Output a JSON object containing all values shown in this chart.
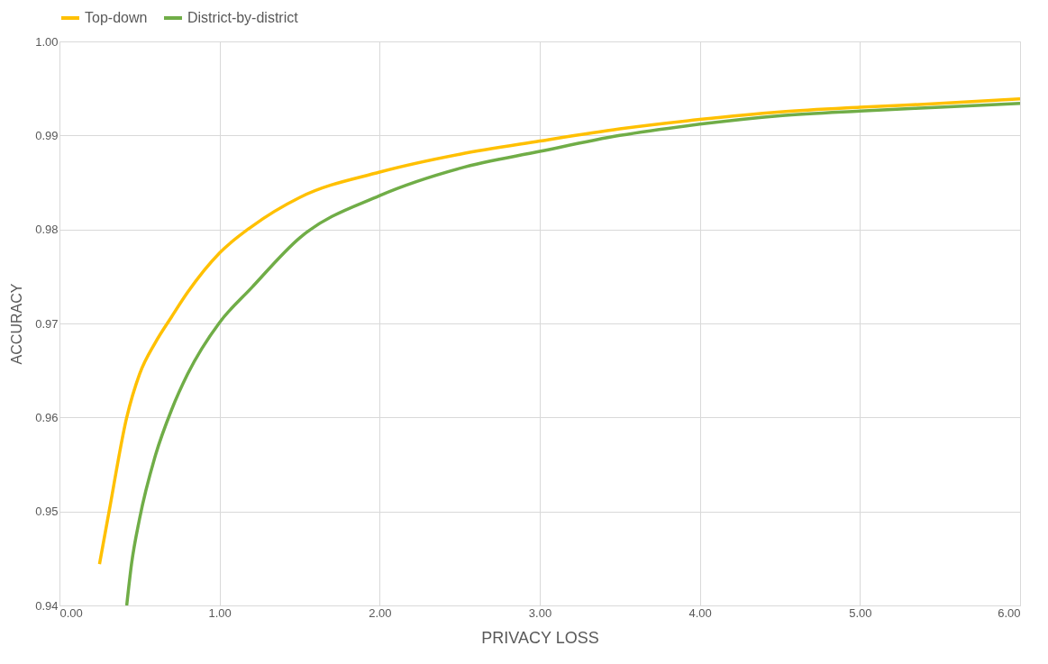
{
  "chart_data": {
    "type": "line",
    "xlabel": "PRIVACY LOSS",
    "ylabel": "ACCURACY",
    "xlim": [
      0,
      6
    ],
    "ylim": [
      0.94,
      1.0
    ],
    "xticks": [
      {
        "value": 0,
        "label": "0.00"
      },
      {
        "value": 1,
        "label": "1.00"
      },
      {
        "value": 2,
        "label": "2.00"
      },
      {
        "value": 3,
        "label": "3.00"
      },
      {
        "value": 4,
        "label": "4.00"
      },
      {
        "value": 5,
        "label": "5.00"
      },
      {
        "value": 6,
        "label": "6.00"
      }
    ],
    "yticks": [
      0.94,
      0.95,
      0.96,
      0.97,
      0.98,
      0.99,
      {
        "value": 1.0,
        "label": "1.00"
      }
    ],
    "grid": true,
    "legend": "top",
    "marker": "none",
    "line_style": "solid",
    "series": [
      {
        "name": "Top-down",
        "color": "#ffc000",
        "x": [
          0.25,
          0.31,
          0.42,
          0.5,
          0.6,
          0.7,
          0.8,
          1.0,
          1.2,
          1.5,
          2.0,
          2.5,
          3.0,
          3.5,
          4.0,
          4.5,
          5.0,
          5.5,
          6.0
        ],
        "values": [
          0.9444,
          0.95,
          0.96,
          0.9646,
          0.968,
          0.9707,
          0.9733,
          0.9775,
          0.9803,
          0.9834,
          0.9861,
          0.988,
          0.9894,
          0.9907,
          0.9917,
          0.9925,
          0.993,
          0.9934,
          0.9939
        ]
      },
      {
        "name": "District-by-district",
        "color": "#70ad47",
        "x": [
          0.42,
          0.45,
          0.5,
          0.6,
          0.7,
          0.8,
          1.0,
          1.2,
          1.5,
          2.0,
          2.5,
          3.0,
          3.5,
          4.0,
          4.5,
          5.0,
          5.5,
          6.0
        ],
        "values": [
          0.94,
          0.9444,
          0.9492,
          0.956,
          0.9608,
          0.9646,
          0.9701,
          0.9738,
          0.9791,
          0.9836,
          0.9865,
          0.9883,
          0.99,
          0.9912,
          0.9921,
          0.9926,
          0.993,
          0.9934
        ]
      }
    ]
  }
}
